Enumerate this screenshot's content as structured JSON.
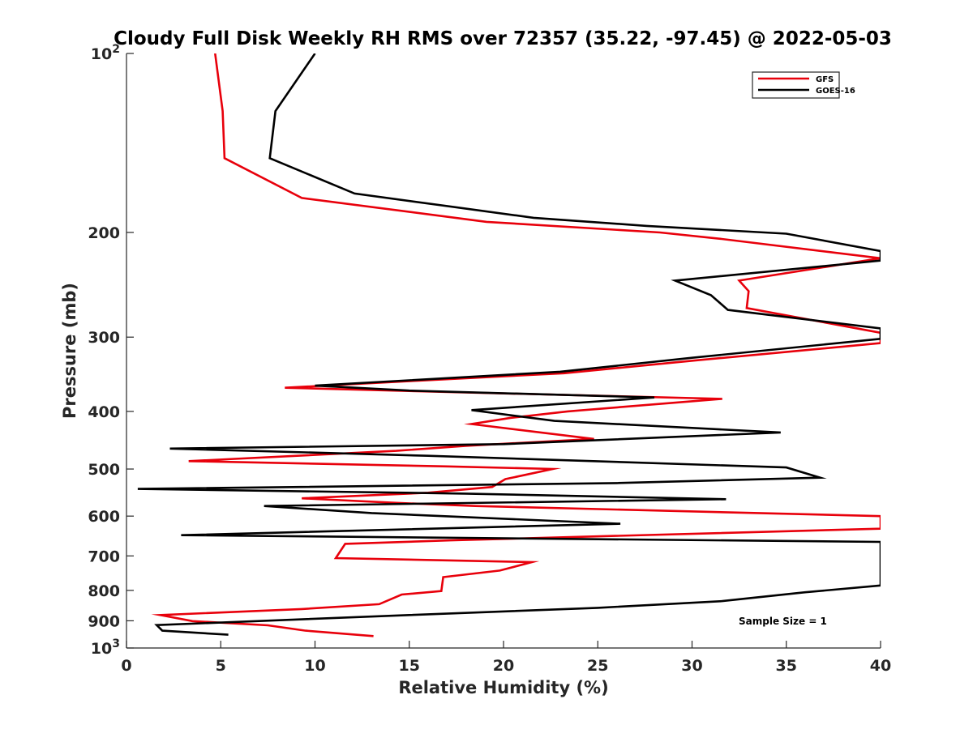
{
  "chart_data": {
    "type": "line",
    "title": "Cloudy Full Disk Weekly RH RMS over 72357 (35.22, -97.45) @ 2022-05-03",
    "xlabel": "Relative Humidity (%)",
    "ylabel": "Pressure (mb)",
    "xlim": [
      0,
      40
    ],
    "ylim": [
      100,
      1000
    ],
    "yscale": "log",
    "y_reversed": true,
    "grid": false,
    "legend_position": "top-right",
    "x_ticks": [
      "0",
      "5",
      "10",
      "15",
      "20",
      "25",
      "30",
      "35",
      "40"
    ],
    "y_ticks": [
      {
        "value": 100,
        "base": "10",
        "exp": "2"
      },
      {
        "value": 200,
        "label": "200"
      },
      {
        "value": 300,
        "label": "300"
      },
      {
        "value": 400,
        "label": "400"
      },
      {
        "value": 500,
        "label": "500"
      },
      {
        "value": 600,
        "label": "600"
      },
      {
        "value": 700,
        "label": "700"
      },
      {
        "value": 800,
        "label": "800"
      },
      {
        "value": 900,
        "label": "900"
      },
      {
        "value": 1000,
        "base": "10",
        "exp": "3"
      }
    ],
    "annotation": "Sample Size = 1",
    "series": [
      {
        "name": "GFS",
        "color": "#e8000b",
        "points": [
          [
            4.7,
            100
          ],
          [
            5.1,
            125
          ],
          [
            5.2,
            150
          ],
          [
            9.3,
            175
          ],
          [
            19.1,
            192
          ],
          [
            28.3,
            200
          ],
          [
            31.5,
            205
          ],
          [
            40,
            221
          ],
          [
            32.5,
            241
          ],
          [
            33.0,
            251
          ],
          [
            32.9,
            268
          ],
          [
            40,
            295
          ],
          [
            40,
            307
          ],
          [
            30.3,
            328
          ],
          [
            23.2,
            345
          ],
          [
            15.5,
            355
          ],
          [
            8.4,
            365
          ],
          [
            15.6,
            370
          ],
          [
            31.6,
            381
          ],
          [
            23.4,
            400
          ],
          [
            20.4,
            410
          ],
          [
            18.3,
            420
          ],
          [
            24.8,
            445
          ],
          [
            18.0,
            457
          ],
          [
            14.3,
            466
          ],
          [
            3.3,
            485
          ],
          [
            17.0,
            495
          ],
          [
            22.6,
            500
          ],
          [
            20.1,
            520
          ],
          [
            19.4,
            536
          ],
          [
            16.0,
            548
          ],
          [
            9.3,
            560
          ],
          [
            14.3,
            570
          ],
          [
            18.5,
            577
          ],
          [
            40,
            600
          ],
          [
            40,
            630
          ],
          [
            17.2,
            659
          ],
          [
            11.6,
            668
          ],
          [
            11.1,
            706
          ],
          [
            21.5,
            717
          ],
          [
            19.8,
            741
          ],
          [
            16.8,
            760
          ],
          [
            16.7,
            802
          ],
          [
            14.6,
            813
          ],
          [
            13.4,
            844
          ],
          [
            9.3,
            860
          ],
          [
            1.8,
            880
          ],
          [
            3.5,
            901
          ],
          [
            7.5,
            916
          ],
          [
            9.5,
            935
          ],
          [
            13.1,
            955
          ]
        ]
      },
      {
        "name": "GOES-16",
        "color": "#000000",
        "points": [
          [
            10.0,
            100
          ],
          [
            7.9,
            125
          ],
          [
            7.6,
            150
          ],
          [
            12.1,
            172
          ],
          [
            21.6,
            189
          ],
          [
            27.6,
            195
          ],
          [
            35.0,
            201
          ],
          [
            40,
            215
          ],
          [
            40,
            223
          ],
          [
            29.1,
            241
          ],
          [
            31.0,
            255
          ],
          [
            31.9,
            270
          ],
          [
            40,
            290
          ],
          [
            40,
            302
          ],
          [
            30.0,
            325
          ],
          [
            23.0,
            343
          ],
          [
            10.0,
            362
          ],
          [
            15.0,
            369
          ],
          [
            28.0,
            379
          ],
          [
            18.3,
            398
          ],
          [
            22.7,
            415
          ],
          [
            34.7,
            434
          ],
          [
            20.0,
            454
          ],
          [
            2.3,
            462
          ],
          [
            16.0,
            475
          ],
          [
            35.0,
            497
          ],
          [
            36.8,
            517
          ],
          [
            26.0,
            528
          ],
          [
            0.6,
            540
          ],
          [
            18.0,
            550
          ],
          [
            31.8,
            562
          ],
          [
            7.3,
            577
          ],
          [
            13.0,
            593
          ],
          [
            26.2,
            618
          ],
          [
            2.9,
            646
          ],
          [
            40,
            663
          ],
          [
            40,
            785
          ],
          [
            36.0,
            806
          ],
          [
            31.6,
            834
          ],
          [
            25.0,
            856
          ],
          [
            15.0,
            880
          ],
          [
            1.6,
            915
          ],
          [
            1.9,
            935
          ],
          [
            5.4,
            950
          ]
        ]
      }
    ]
  }
}
